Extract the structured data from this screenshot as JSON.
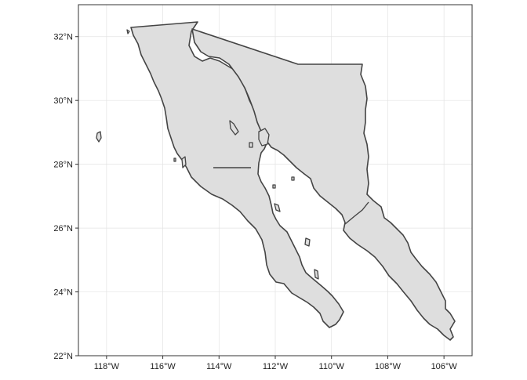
{
  "map": {
    "type": "choropleth-outline",
    "fill_color": "#dedede",
    "border_color": "#444444",
    "grid": true,
    "xlim": [
      -119,
      -105
    ],
    "ylim": [
      22,
      33
    ],
    "x_ticks": [
      {
        "value": -118,
        "label": "118°W"
      },
      {
        "value": -116,
        "label": "116°W"
      },
      {
        "value": -114,
        "label": "114°W"
      },
      {
        "value": -112,
        "label": "112°W"
      },
      {
        "value": -110,
        "label": "110°W"
      },
      {
        "value": -108,
        "label": "108°W"
      },
      {
        "value": -106,
        "label": "106°W"
      }
    ],
    "y_ticks": [
      {
        "value": 22,
        "label": "22°N"
      },
      {
        "value": 24,
        "label": "24°N"
      },
      {
        "value": 26,
        "label": "26°N"
      },
      {
        "value": 28,
        "label": "28°N"
      },
      {
        "value": 30,
        "label": "30°N"
      },
      {
        "value": 32,
        "label": "32°N"
      }
    ]
  }
}
